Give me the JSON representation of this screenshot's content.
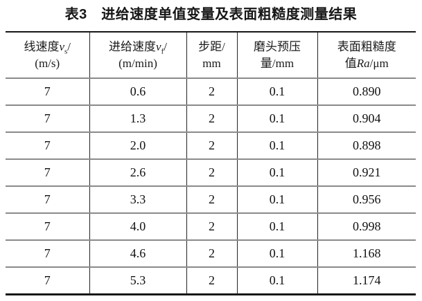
{
  "title": "表3　进给速度单值变量及表面粗糙度测量结果",
  "colors": {
    "background": "#ffffff",
    "text": "#1a1a1a",
    "border_strong": "#161616",
    "rule_gray": "#8a8a8a",
    "vertical_rule": "#222222"
  },
  "table": {
    "columns": [
      {
        "pre": "线速度",
        "var": "v",
        "sub": "s",
        "post": "/",
        "unit": "(m/s)"
      },
      {
        "pre": "进给速度",
        "var": "v",
        "sub": "f",
        "post": "/",
        "unit": "(m/min)"
      },
      {
        "pre": "步距/",
        "unit": "mm"
      },
      {
        "pre": "磨头预压",
        "unit": "量/mm"
      },
      {
        "pre": "表面粗糙度",
        "unit_pre": "值",
        "unit_var": "Ra",
        "unit_post": "/μm"
      }
    ],
    "rows": [
      [
        "7",
        "0.6",
        "2",
        "0.1",
        "0.890"
      ],
      [
        "7",
        "1.3",
        "2",
        "0.1",
        "0.904"
      ],
      [
        "7",
        "2.0",
        "2",
        "0.1",
        "0.898"
      ],
      [
        "7",
        "2.6",
        "2",
        "0.1",
        "0.921"
      ],
      [
        "7",
        "3.3",
        "2",
        "0.1",
        "0.956"
      ],
      [
        "7",
        "4.0",
        "2",
        "0.1",
        "0.998"
      ],
      [
        "7",
        "4.6",
        "2",
        "0.1",
        "1.168"
      ],
      [
        "7",
        "5.3",
        "2",
        "0.1",
        "1.174"
      ]
    ]
  }
}
